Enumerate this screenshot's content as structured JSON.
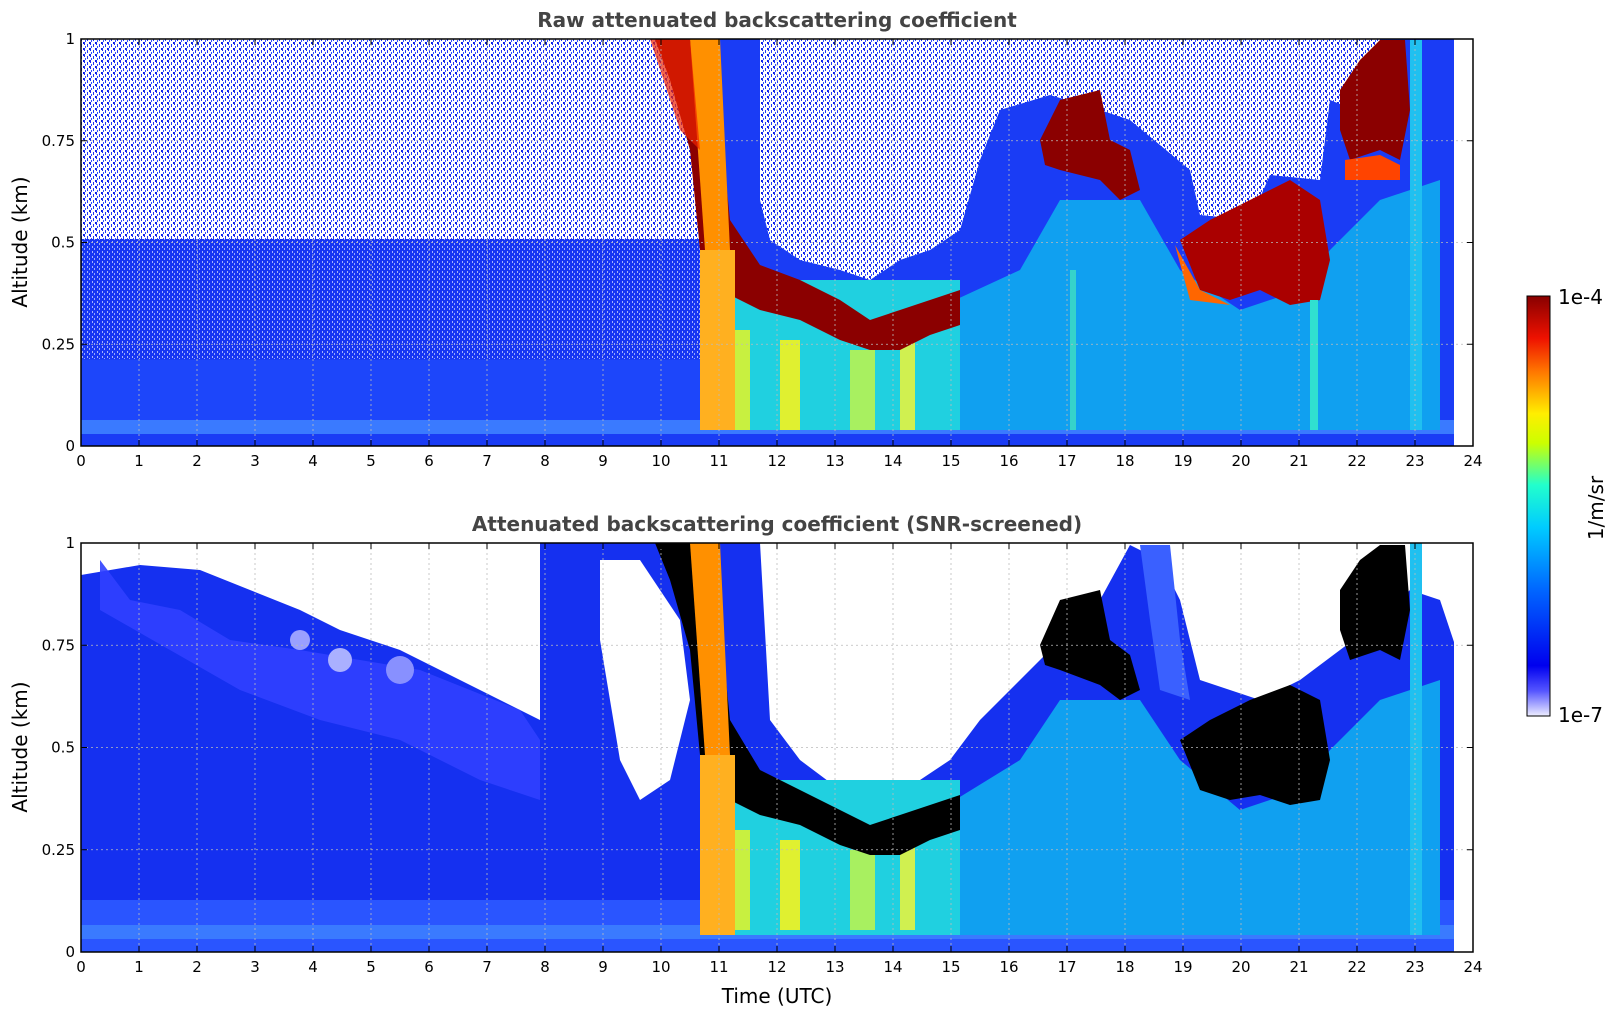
{
  "chart_data": [
    {
      "type": "heatmap",
      "title": "Raw attenuated backscattering coefficient",
      "xlabel": "",
      "ylabel": "Altitude (km)",
      "xlim": [
        0,
        24
      ],
      "ylim": [
        0,
        1
      ],
      "x_ticks": [
        "0",
        "1",
        "2",
        "3",
        "4",
        "5",
        "6",
        "7",
        "8",
        "9",
        "10",
        "11",
        "12",
        "13",
        "14",
        "15",
        "16",
        "17",
        "18",
        "19",
        "20",
        "21",
        "22",
        "23",
        "24"
      ],
      "y_ticks": [
        "0",
        "0.25",
        "0.5",
        "0.75",
        "1"
      ],
      "grid": true,
      "layers": [
        {
          "name": "near-ground layer",
          "x": [
            0,
            23.7
          ],
          "y": [
            0,
            0.05
          ],
          "level": 0.25
        },
        {
          "name": "boundary layer top (high backscatter)",
          "x": [
            10.6,
            15.2
          ],
          "y": [
            0.22,
            1.0
          ],
          "level": 1.0
        },
        {
          "name": "cloud band afternoon",
          "x": [
            16.5,
            18.2
          ],
          "y": [
            0.6,
            0.85
          ],
          "level": 1.0
        },
        {
          "name": "cloud band evening",
          "x": [
            19.0,
            21.5
          ],
          "y": [
            0.33,
            0.6
          ],
          "level": 1.0
        },
        {
          "name": "cloud band night",
          "x": [
            21.6,
            22.9
          ],
          "y": [
            0.7,
            1.0
          ],
          "level": 1.0
        }
      ]
    },
    {
      "type": "heatmap",
      "title": "Attenuated backscattering coefficient (SNR-screened)",
      "xlabel": "Time (UTC)",
      "ylabel": "Altitude (km)",
      "xlim": [
        0,
        24
      ],
      "ylim": [
        0,
        1
      ],
      "x_ticks": [
        "0",
        "1",
        "2",
        "3",
        "4",
        "5",
        "6",
        "7",
        "8",
        "9",
        "10",
        "11",
        "12",
        "13",
        "14",
        "15",
        "16",
        "17",
        "18",
        "19",
        "20",
        "21",
        "22",
        "23",
        "24"
      ],
      "y_ticks": [
        "0",
        "0.25",
        "0.5",
        "0.75",
        "1"
      ],
      "grid": true,
      "layers": [
        {
          "name": "near-ground layer",
          "x": [
            0,
            23.7
          ],
          "y": [
            0,
            0.05
          ],
          "level": 0.25
        },
        {
          "name": "boundary layer top (saturated)",
          "x": [
            10.6,
            15.2
          ],
          "y": [
            0.22,
            1.0
          ],
          "level": 1.0
        },
        {
          "name": "cloud band afternoon",
          "x": [
            16.5,
            18.2
          ],
          "y": [
            0.6,
            0.85
          ],
          "level": 1.0
        },
        {
          "name": "cloud band evening",
          "x": [
            19.0,
            21.5
          ],
          "y": [
            0.33,
            0.6
          ],
          "level": 1.0
        },
        {
          "name": "cloud band night",
          "x": [
            21.6,
            22.9
          ],
          "y": [
            0.7,
            1.0
          ],
          "level": 1.0
        }
      ]
    }
  ],
  "colorbar": {
    "label": "1/m/sr",
    "max_label": "1e-4",
    "min_label": "1e-7",
    "colormap": [
      "#eeeeff",
      "#0000ee",
      "#0055ff",
      "#00aaff",
      "#00eeee",
      "#55ff99",
      "#eeee00",
      "#ff9900",
      "#ee2200",
      "#880000"
    ]
  }
}
